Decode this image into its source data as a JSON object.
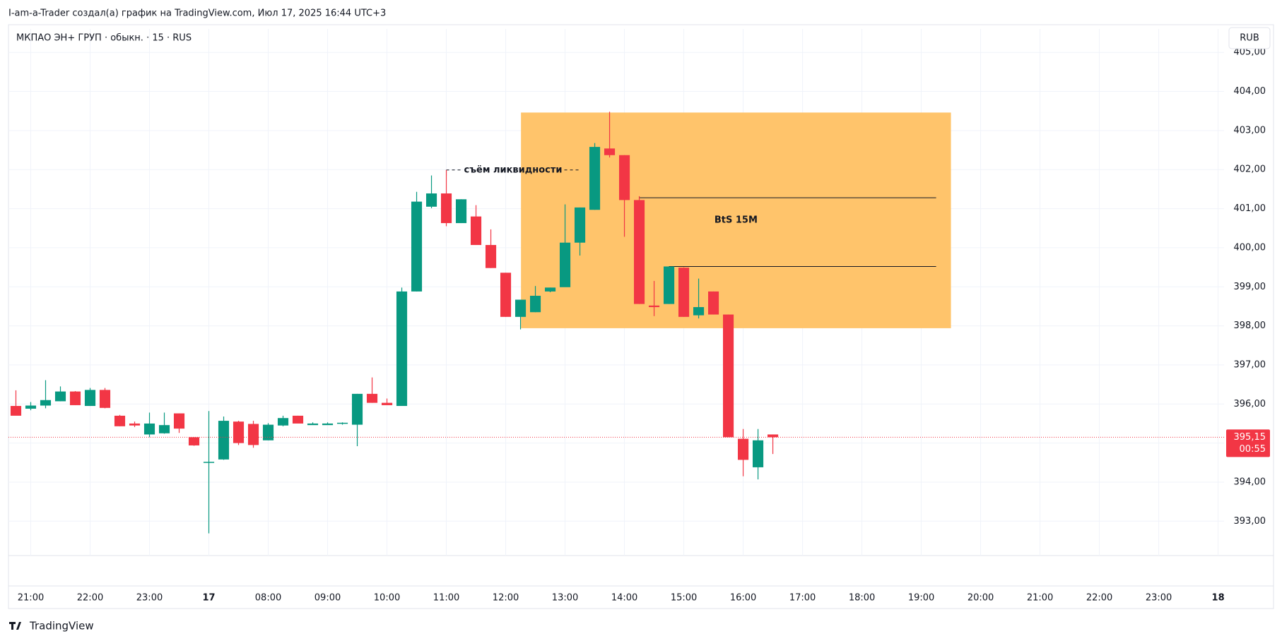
{
  "header": {
    "credit": "I-am-a-Trader создал(а) график на TradingView.com, Июл 17, 2025 16:44 UTC+3",
    "symbol": "МКПАО ЭН+ ГРУП · обыкн. · 15 · RUS",
    "currency": "RUB",
    "logo": "TradingView"
  },
  "chart_data": {
    "type": "candlestick",
    "up_color": "#089981",
    "down_color": "#f23645",
    "grid": true,
    "open": [
      395.95,
      395.88,
      395.96,
      396.07,
      396.32,
      395.95,
      396.36,
      395.7,
      395.5,
      395.22,
      395.25,
      395.76,
      395.15,
      394.5,
      394.58,
      395.55,
      395.49,
      395.07,
      395.45,
      395.7,
      395.46,
      395.46,
      395.5,
      395.47,
      396.26,
      396.03,
      395.95,
      398.88,
      401.05,
      401.39,
      400.63,
      400.8,
      400.07,
      399.36,
      398.23,
      398.35,
      398.88,
      398.99,
      400.13,
      400.97,
      402.54,
      402.37,
      401.22,
      398.52,
      398.56,
      399.49,
      398.27,
      398.88,
      398.29,
      395.11,
      394.38,
      395.22
    ],
    "high": [
      396.35,
      396.05,
      396.61,
      396.45,
      396.33,
      396.41,
      396.41,
      395.72,
      395.55,
      395.78,
      395.78,
      395.76,
      395.15,
      395.82,
      395.68,
      395.57,
      395.57,
      395.51,
      395.7,
      395.7,
      395.53,
      395.53,
      395.53,
      396.26,
      396.68,
      396.14,
      398.98,
      401.43,
      401.85,
      401.99,
      401.24,
      401.09,
      400.47,
      399.36,
      398.67,
      399.02,
      398.98,
      401.11,
      401.03,
      402.68,
      403.48,
      402.37,
      401.32,
      399.15,
      399.52,
      399.5,
      399.21,
      398.88,
      398.29,
      395.36,
      395.36,
      395.22
    ],
    "low": [
      395.72,
      395.84,
      395.89,
      396.07,
      395.97,
      395.95,
      395.89,
      395.43,
      395.41,
      395.15,
      395.24,
      395.26,
      394.93,
      392.69,
      394.57,
      394.95,
      394.88,
      395.07,
      395.43,
      395.51,
      395.47,
      395.47,
      395.47,
      394.92,
      396.03,
      395.97,
      395.95,
      398.88,
      401.01,
      400.55,
      400.63,
      400.07,
      399.48,
      398.23,
      397.91,
      398.35,
      398.86,
      399.0,
      399.8,
      400.97,
      402.31,
      400.28,
      398.56,
      398.25,
      398.56,
      398.23,
      398.19,
      398.29,
      395.15,
      394.15,
      394.07,
      394.72
    ],
    "close": [
      395.7,
      395.96,
      396.1,
      396.32,
      395.97,
      396.36,
      395.9,
      395.43,
      395.45,
      395.5,
      395.46,
      395.37,
      394.94,
      394.52,
      395.57,
      395.0,
      394.95,
      395.47,
      395.64,
      395.5,
      395.5,
      395.5,
      395.52,
      396.26,
      396.03,
      395.97,
      398.88,
      401.18,
      401.39,
      400.63,
      401.24,
      400.07,
      399.48,
      398.23,
      398.67,
      398.77,
      398.98,
      400.13,
      401.03,
      402.58,
      402.37,
      401.22,
      398.56,
      398.48,
      399.52,
      398.23,
      398.48,
      398.29,
      395.15,
      394.57,
      395.07,
      395.15
    ],
    "xlim": [
      -0.5,
      81.4
    ],
    "xticks": [
      {
        "value": 1,
        "label": "21:00"
      },
      {
        "value": 5,
        "label": "22:00"
      },
      {
        "value": 9,
        "label": "23:00"
      },
      {
        "value": 13,
        "label": "17"
      },
      {
        "value": 17,
        "label": "08:00"
      },
      {
        "value": 21,
        "label": "09:00"
      },
      {
        "value": 25,
        "label": "10:00"
      },
      {
        "value": 29,
        "label": "11:00"
      },
      {
        "value": 33,
        "label": "12:00"
      },
      {
        "value": 37,
        "label": "13:00"
      },
      {
        "value": 41,
        "label": "14:00"
      },
      {
        "value": 45,
        "label": "15:00"
      },
      {
        "value": 49,
        "label": "16:00"
      },
      {
        "value": 53,
        "label": "17:00"
      },
      {
        "value": 57,
        "label": "18:00"
      },
      {
        "value": 61,
        "label": "19:00"
      },
      {
        "value": 65,
        "label": "20:00"
      },
      {
        "value": 69,
        "label": "21:00"
      },
      {
        "value": 73,
        "label": "22:00"
      },
      {
        "value": 77,
        "label": "23:00"
      },
      {
        "value": 81,
        "label": "18"
      }
    ],
    "ylim": [
      392.12,
      405.6
    ],
    "yticks": [
      {
        "value": 393,
        "label": "393,00"
      },
      {
        "value": 394,
        "label": "394,00"
      },
      {
        "value": 395,
        "label": "395,00"
      },
      {
        "value": 396,
        "label": "396,00"
      },
      {
        "value": 397,
        "label": "397,00"
      },
      {
        "value": 398,
        "label": "398,00"
      },
      {
        "value": 399,
        "label": "399,00"
      },
      {
        "value": 400,
        "label": "400,00"
      },
      {
        "value": 401,
        "label": "401,00"
      },
      {
        "value": 402,
        "label": "402,00"
      },
      {
        "value": 403,
        "label": "403,00"
      },
      {
        "value": 404,
        "label": "404,00"
      },
      {
        "value": 405,
        "label": "405,00"
      }
    ],
    "last_price": {
      "value": 395.15,
      "label": "395,15",
      "countdown": "00:55"
    },
    "zone": {
      "label": "BtS 15M",
      "color": "#ffc46b",
      "x": [
        34.03,
        63
      ],
      "y": [
        397.94,
        403.46
      ],
      "lines": [
        {
          "price": 401.28,
          "x": [
            42,
            62
          ]
        },
        {
          "price": 399.52,
          "x": [
            44,
            62
          ]
        }
      ]
    },
    "annotation": {
      "text": "съём ликвидности",
      "price": 401.99,
      "x": [
        29,
        38
      ]
    }
  }
}
